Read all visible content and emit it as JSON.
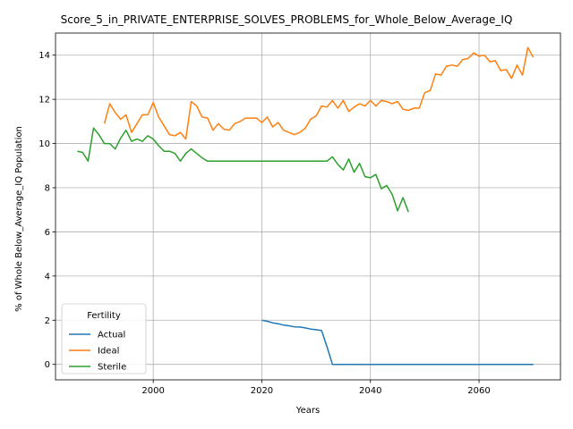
{
  "chart_data": {
    "type": "line",
    "title": "Score_5_in_PRIVATE_ENTERPRISE_SOLVES_PROBLEMS_for_Whole_Below_Average_IQ",
    "xlabel": "Years",
    "ylabel": "% of Whole Below_Average_IQ Population",
    "xlim": [
      1982,
      2075
    ],
    "ylim": [
      -0.7,
      15.0
    ],
    "xticks": [
      2000,
      2020,
      2040,
      2060
    ],
    "yticks": [
      0,
      2,
      4,
      6,
      8,
      10,
      12,
      14
    ],
    "grid": true,
    "legend": {
      "title": "Fertility",
      "placement": "lower-left"
    },
    "series": [
      {
        "name": "Actual",
        "color": "#1f77b4",
        "x": [
          2020,
          2021,
          2022,
          2023,
          2024,
          2025,
          2026,
          2027,
          2028,
          2029,
          2030,
          2031,
          2032,
          2033,
          2034,
          2035,
          2040,
          2045,
          2050,
          2055,
          2060,
          2065,
          2070
        ],
        "y": [
          2.0,
          1.95,
          1.88,
          1.84,
          1.78,
          1.75,
          1.7,
          1.69,
          1.65,
          1.6,
          1.57,
          1.53,
          0.8,
          0.0,
          0.0,
          0.0,
          0.0,
          0.0,
          0.0,
          0.0,
          0.0,
          0.0,
          0.0
        ]
      },
      {
        "name": "Ideal",
        "color": "#ff7f0e",
        "x": [
          1991,
          1992,
          1993,
          1994,
          1995,
          1996,
          1997,
          1998,
          1999,
          2000,
          2001,
          2002,
          2003,
          2004,
          2005,
          2006,
          2007,
          2008,
          2009,
          2010,
          2011,
          2012,
          2013,
          2014,
          2015,
          2016,
          2017,
          2018,
          2019,
          2020,
          2021,
          2022,
          2023,
          2024,
          2025,
          2026,
          2027,
          2028,
          2029,
          2030,
          2031,
          2032,
          2033,
          2034,
          2035,
          2036,
          2037,
          2038,
          2039,
          2040,
          2041,
          2042,
          2043,
          2044,
          2045,
          2046,
          2047,
          2048,
          2049,
          2050,
          2051,
          2052,
          2053,
          2054,
          2055,
          2056,
          2057,
          2058,
          2059,
          2060,
          2061,
          2062,
          2063,
          2064,
          2065,
          2066,
          2067,
          2068,
          2069,
          2070
        ],
        "y": [
          10.9,
          11.8,
          11.4,
          11.1,
          11.3,
          10.5,
          10.9,
          11.3,
          11.3,
          11.85,
          11.2,
          10.8,
          10.4,
          10.35,
          10.5,
          10.2,
          11.9,
          11.7,
          11.2,
          11.15,
          10.6,
          10.9,
          10.65,
          10.6,
          10.9,
          11.0,
          11.15,
          11.15,
          11.15,
          10.95,
          11.2,
          10.75,
          10.95,
          10.6,
          10.5,
          10.4,
          10.5,
          10.7,
          11.1,
          11.25,
          11.7,
          11.65,
          11.95,
          11.6,
          11.95,
          11.45,
          11.65,
          11.8,
          11.7,
          11.95,
          11.7,
          11.95,
          11.9,
          11.8,
          11.9,
          11.55,
          11.5,
          11.6,
          11.6,
          12.3,
          12.4,
          13.15,
          13.1,
          13.5,
          13.55,
          13.5,
          13.8,
          13.85,
          14.1,
          13.95,
          14.0,
          13.7,
          13.75,
          13.3,
          13.35,
          12.95,
          13.55,
          13.1,
          14.35,
          13.9
        ]
      },
      {
        "name": "Sterile",
        "color": "#2ca02c",
        "x": [
          1986,
          1987,
          1988,
          1989,
          1990,
          1991,
          1992,
          1993,
          1994,
          1995,
          1996,
          1997,
          1998,
          1999,
          2000,
          2001,
          2002,
          2003,
          2004,
          2005,
          2006,
          2007,
          2008,
          2009,
          2010,
          2011,
          2012,
          2013,
          2014,
          2015,
          2016,
          2017,
          2018,
          2019,
          2020,
          2021,
          2022,
          2023,
          2024,
          2025,
          2026,
          2027,
          2028,
          2029,
          2030,
          2031,
          2032,
          2033,
          2034,
          2035,
          2036,
          2037,
          2038,
          2039,
          2040,
          2041,
          2042,
          2043,
          2044,
          2045,
          2046,
          2047
        ],
        "y": [
          9.65,
          9.6,
          9.2,
          10.7,
          10.4,
          10.0,
          10.0,
          9.75,
          10.25,
          10.6,
          10.1,
          10.2,
          10.1,
          10.35,
          10.2,
          9.9,
          9.65,
          9.65,
          9.55,
          9.2,
          9.55,
          9.75,
          9.55,
          9.35,
          9.2,
          9.2,
          9.2,
          9.2,
          9.2,
          9.2,
          9.2,
          9.2,
          9.2,
          9.2,
          9.2,
          9.2,
          9.2,
          9.2,
          9.2,
          9.2,
          9.2,
          9.2,
          9.2,
          9.2,
          9.2,
          9.2,
          9.2,
          9.4,
          9.05,
          8.8,
          9.3,
          8.7,
          9.1,
          8.5,
          8.45,
          8.6,
          7.95,
          8.1,
          7.7,
          6.95,
          7.55,
          6.9
        ]
      }
    ]
  }
}
